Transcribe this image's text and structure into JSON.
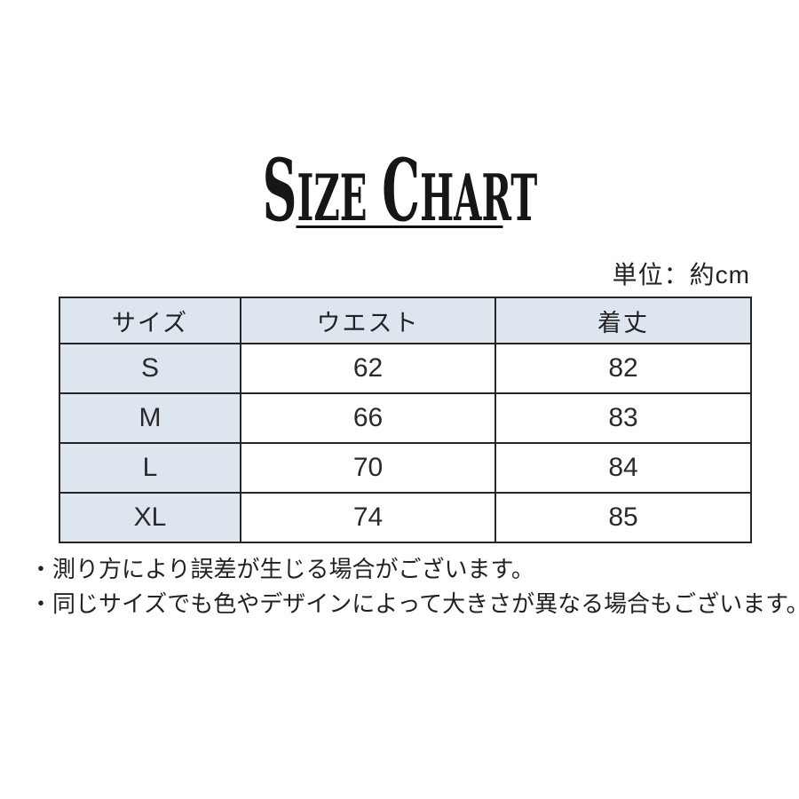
{
  "title": {
    "text": "SIZE CHART",
    "part1": "S",
    "part2": "IZE",
    "part3": "C",
    "part4": "HART"
  },
  "unit_label": "単位：約cm",
  "table": {
    "headers": [
      "サイズ",
      "ウエスト",
      "着丈"
    ],
    "rows": [
      {
        "size": "S",
        "waist": "62",
        "length": "82"
      },
      {
        "size": "M",
        "waist": "66",
        "length": "83"
      },
      {
        "size": "L",
        "waist": "70",
        "length": "84"
      },
      {
        "size": "XL",
        "waist": "74",
        "length": "85"
      }
    ]
  },
  "notes": [
    "・測り方により誤差が生じる場合がございます。",
    "・同じサイズでも色やデザインによって大きさが異なる場合もございます。"
  ],
  "colors": {
    "accent_cell_bg": "#dde5ee",
    "table_border": "#262626",
    "text": "#1f1f1f"
  },
  "chart_data": {
    "type": "table",
    "title": "SIZE CHART",
    "unit": "約cm",
    "columns": [
      "サイズ",
      "ウエスト",
      "着丈"
    ],
    "rows": [
      [
        "S",
        62,
        82
      ],
      [
        "M",
        66,
        83
      ],
      [
        "L",
        70,
        84
      ],
      [
        "XL",
        74,
        85
      ]
    ],
    "notes": [
      "・測り方により誤差が生じる場合がございます。",
      "・同じサイズでも色やデザインによって大きさが異なる場合もございます。"
    ]
  }
}
